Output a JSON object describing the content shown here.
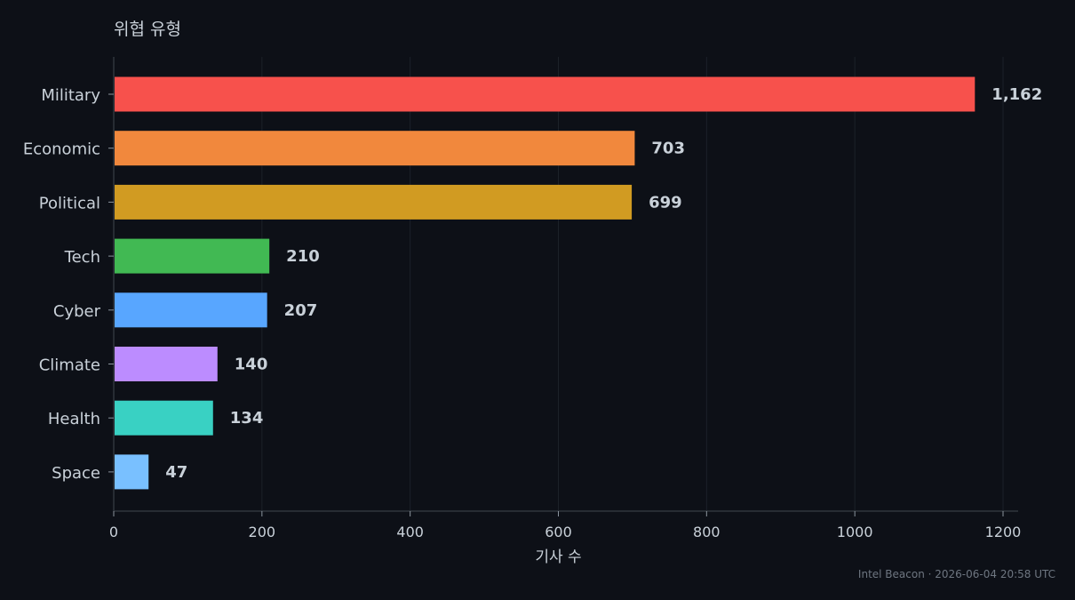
{
  "chart_data": {
    "type": "bar",
    "orientation": "horizontal",
    "title": "위협 유형",
    "xlabel": "기사 수",
    "ylabel": "",
    "xlim": [
      0,
      1220
    ],
    "xticks": [
      0,
      200,
      400,
      600,
      800,
      1000,
      1200
    ],
    "categories": [
      "Military",
      "Economic",
      "Political",
      "Tech",
      "Cyber",
      "Climate",
      "Health",
      "Space"
    ],
    "values": [
      1162,
      703,
      699,
      210,
      207,
      140,
      134,
      47
    ],
    "value_labels": [
      "1,162",
      "703",
      "699",
      "210",
      "207",
      "140",
      "134",
      "47"
    ],
    "colors": [
      "#f7514c",
      "#f1883d",
      "#d19b22",
      "#41b953",
      "#58a6ff",
      "#bc8cff",
      "#39d1c3",
      "#79c0ff"
    ],
    "grid": "vertical",
    "legend": "none"
  },
  "footer": "Intel Beacon · 2026-06-04 20:58 UTC"
}
